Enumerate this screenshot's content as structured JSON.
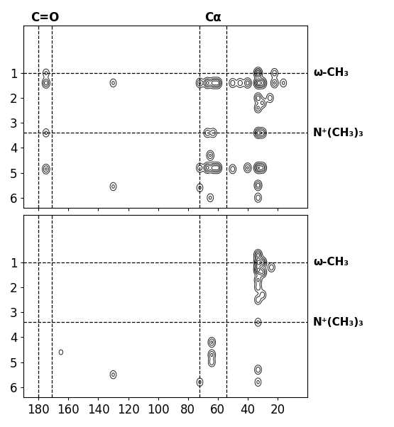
{
  "chart_data": [
    {
      "type": "contour",
      "color": "#222222",
      "tick_labels": "y",
      "xlim": [
        190,
        0
      ],
      "ylim": [
        6.4,
        -0.9
      ],
      "xticks": [
        180,
        160,
        140,
        120,
        100,
        80,
        60,
        40,
        20
      ],
      "yticks": [
        1,
        2,
        3,
        4,
        5,
        6
      ],
      "x_lines": [
        180,
        171,
        72,
        54
      ],
      "y_lines": [
        1.0,
        3.4
      ],
      "column_labels": [
        {
          "text": "C=O",
          "x": 175.5
        },
        {
          "text": "Cα",
          "x": 63
        }
      ],
      "row_labels": [
        {
          "text": "ω-CH₃",
          "y": 1.0
        },
        {
          "text": "N⁺(CH₃)₃",
          "y": 3.4
        }
      ],
      "peaks": [
        {
          "x": 175,
          "y": 1.0,
          "intensity": 0.3
        },
        {
          "x": 175,
          "y": 1.4,
          "intensity": 0.6
        },
        {
          "x": 175,
          "y": 3.4,
          "intensity": 0.3
        },
        {
          "x": 175,
          "y": 4.85,
          "intensity": 0.5
        },
        {
          "x": 130,
          "y": 1.4,
          "intensity": 0.3
        },
        {
          "x": 130,
          "y": 5.55,
          "intensity": 0.3
        },
        {
          "x": 72,
          "y": 1.4,
          "intensity": 0.5
        },
        {
          "x": 67,
          "y": 1.4,
          "intensity": 0.8
        },
        {
          "x": 63,
          "y": 1.4,
          "intensity": 0.8
        },
        {
          "x": 60,
          "y": 1.4,
          "intensity": 0.8
        },
        {
          "x": 67,
          "y": 3.4,
          "intensity": 0.4
        },
        {
          "x": 63,
          "y": 3.4,
          "intensity": 0.4
        },
        {
          "x": 72,
          "y": 4.8,
          "intensity": 0.4
        },
        {
          "x": 67,
          "y": 4.8,
          "intensity": 0.8
        },
        {
          "x": 63,
          "y": 4.8,
          "intensity": 0.8
        },
        {
          "x": 60,
          "y": 4.8,
          "intensity": 0.8
        },
        {
          "x": 65,
          "y": 4.3,
          "intensity": 0.5
        },
        {
          "x": 72,
          "y": 5.6,
          "intensity": 0.3
        },
        {
          "x": 65,
          "y": 6.0,
          "intensity": 0.3
        },
        {
          "x": 33,
          "y": 1.0,
          "intensity": 1.0
        },
        {
          "x": 33,
          "y": 1.4,
          "intensity": 1.0
        },
        {
          "x": 33,
          "y": 2.0,
          "intensity": 0.6
        },
        {
          "x": 33,
          "y": 2.4,
          "intensity": 0.5
        },
        {
          "x": 33,
          "y": 3.4,
          "intensity": 0.8
        },
        {
          "x": 33,
          "y": 4.8,
          "intensity": 0.9
        },
        {
          "x": 33,
          "y": 5.5,
          "intensity": 0.6
        },
        {
          "x": 33,
          "y": 6.0,
          "intensity": 0.4
        },
        {
          "x": 30,
          "y": 1.4,
          "intensity": 0.8
        },
        {
          "x": 30,
          "y": 2.2,
          "intensity": 0.5
        },
        {
          "x": 30,
          "y": 3.4,
          "intensity": 0.6
        },
        {
          "x": 30,
          "y": 4.8,
          "intensity": 0.7
        },
        {
          "x": 40,
          "y": 1.4,
          "intensity": 0.6
        },
        {
          "x": 40,
          "y": 4.8,
          "intensity": 0.5
        },
        {
          "x": 45,
          "y": 1.4,
          "intensity": 0.4
        },
        {
          "x": 50,
          "y": 1.4,
          "intensity": 0.4
        },
        {
          "x": 50,
          "y": 4.85,
          "intensity": 0.4
        },
        {
          "x": 22,
          "y": 1.4,
          "intensity": 0.5
        },
        {
          "x": 22,
          "y": 1.0,
          "intensity": 0.4
        },
        {
          "x": 16,
          "y": 1.4,
          "intensity": 0.3
        },
        {
          "x": 25,
          "y": 2.0,
          "intensity": 0.4
        }
      ]
    },
    {
      "type": "contour",
      "color": "#222222",
      "xlim": [
        190,
        0
      ],
      "ylim": [
        6.4,
        -0.9
      ],
      "xticks": [
        180,
        160,
        140,
        120,
        100,
        80,
        60,
        40,
        20
      ],
      "yticks": [
        1,
        2,
        3,
        4,
        5,
        6
      ],
      "x_lines": [
        180,
        171,
        72,
        54
      ],
      "y_lines": [
        1.0,
        3.4
      ],
      "row_labels": [
        {
          "text": "ω-CH₃",
          "y": 1.0
        },
        {
          "text": "N⁺(CH₃)₃",
          "y": 3.4
        }
      ],
      "peaks": [
        {
          "x": 33,
          "y": 0.7,
          "intensity": 0.8
        },
        {
          "x": 33,
          "y": 1.0,
          "intensity": 1.0
        },
        {
          "x": 33,
          "y": 1.3,
          "intensity": 1.0
        },
        {
          "x": 33,
          "y": 1.7,
          "intensity": 0.5
        },
        {
          "x": 33,
          "y": 2.0,
          "intensity": 0.4
        },
        {
          "x": 33,
          "y": 2.5,
          "intensity": 0.4
        },
        {
          "x": 33,
          "y": 3.4,
          "intensity": 0.3
        },
        {
          "x": 33,
          "y": 5.3,
          "intensity": 0.4
        },
        {
          "x": 33,
          "y": 5.8,
          "intensity": 0.3
        },
        {
          "x": 30,
          "y": 1.0,
          "intensity": 0.8
        },
        {
          "x": 30,
          "y": 1.4,
          "intensity": 0.7
        },
        {
          "x": 30,
          "y": 2.3,
          "intensity": 0.4
        },
        {
          "x": 24,
          "y": 1.2,
          "intensity": 0.4
        },
        {
          "x": 64,
          "y": 4.2,
          "intensity": 0.5
        },
        {
          "x": 64,
          "y": 4.7,
          "intensity": 0.5
        },
        {
          "x": 64,
          "y": 5.0,
          "intensity": 0.4
        },
        {
          "x": 72,
          "y": 5.8,
          "intensity": 0.3
        },
        {
          "x": 130,
          "y": 5.5,
          "intensity": 0.3
        },
        {
          "x": 165,
          "y": 4.6,
          "intensity": 0.15
        }
      ]
    }
  ]
}
